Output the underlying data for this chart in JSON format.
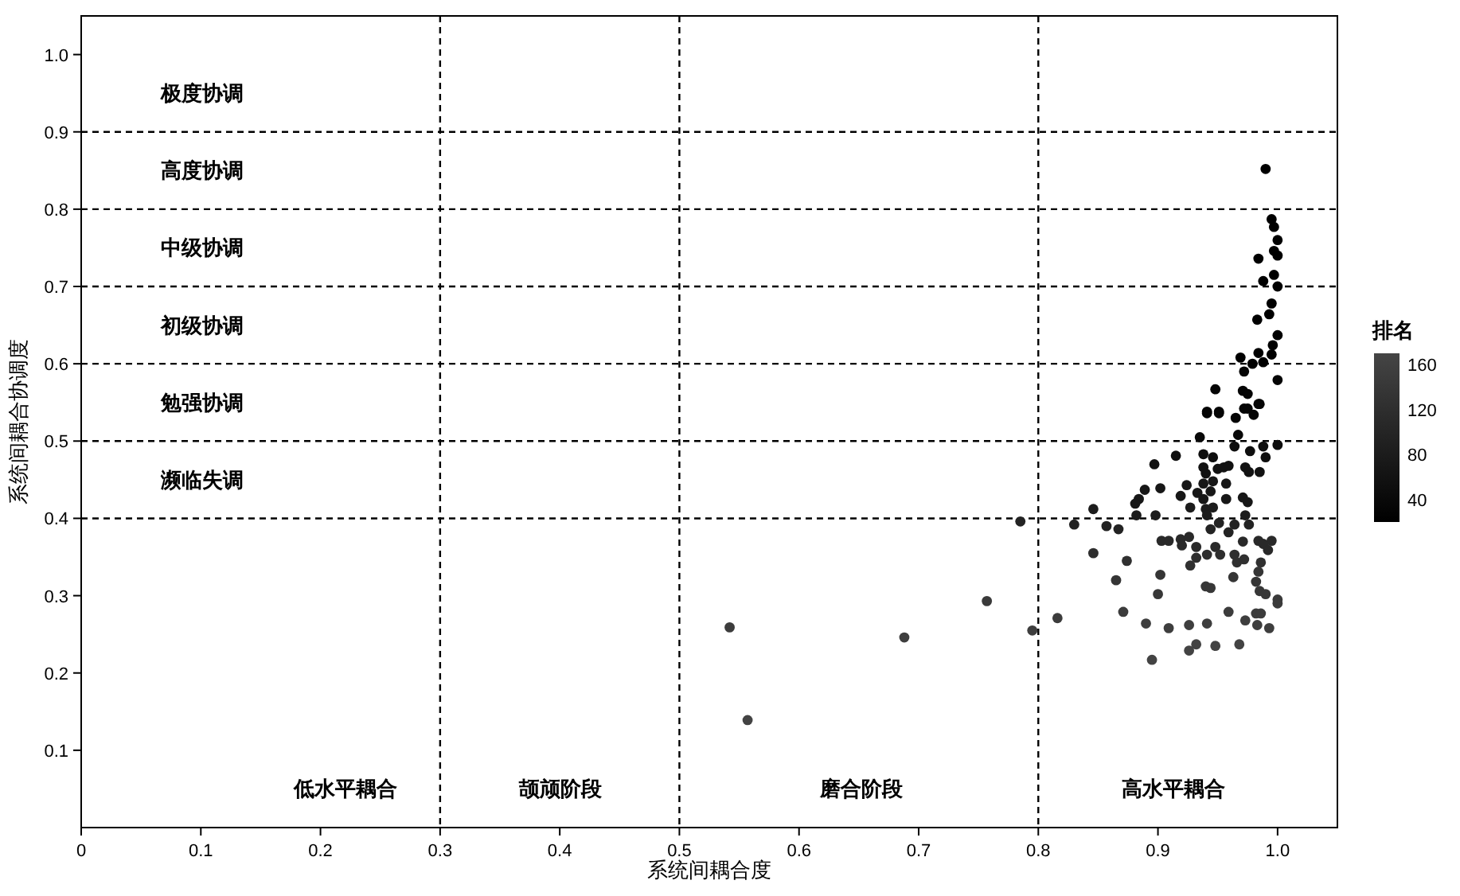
{
  "chart_data": {
    "type": "scatter",
    "xlabel": "系统间耦合度",
    "ylabel": "系统间耦合协调度",
    "clabel": "排名",
    "clim": [
      20,
      170
    ],
    "cticks": [
      40,
      80,
      120,
      160
    ],
    "xlim": [
      0,
      1.05
    ],
    "ylim": [
      0,
      1.05
    ],
    "xticks": [
      0,
      0.1,
      0.2,
      0.3,
      0.4,
      0.5,
      0.6,
      0.7,
      0.8,
      0.9,
      {
        "value": 1,
        "label": "1.0"
      }
    ],
    "yticks": [
      0.1,
      0.2,
      0.3,
      0.4,
      0.5,
      0.6,
      0.7,
      0.8,
      0.9,
      {
        "value": 1,
        "label": "1.0"
      }
    ],
    "grid": false,
    "marker": "circle",
    "ref_lines": [
      {
        "axis": "x",
        "value": 0.3,
        "line_style": "dashed",
        "color": "#000000"
      },
      {
        "axis": "x",
        "value": 0.5,
        "line_style": "dashed",
        "color": "#000000"
      },
      {
        "axis": "x",
        "value": 0.8,
        "line_style": "dashed",
        "color": "#000000"
      },
      {
        "axis": "y",
        "value": 0.4,
        "line_style": "dashed",
        "color": "#000000"
      },
      {
        "axis": "y",
        "value": 0.5,
        "line_style": "dashed",
        "color": "#000000"
      },
      {
        "axis": "y",
        "value": 0.6,
        "line_style": "dashed",
        "color": "#000000"
      },
      {
        "axis": "y",
        "value": 0.7,
        "line_style": "dashed",
        "color": "#000000"
      },
      {
        "axis": "y",
        "value": 0.8,
        "line_style": "dashed",
        "color": "#000000"
      },
      {
        "axis": "y",
        "value": 0.9,
        "line_style": "dashed",
        "color": "#000000"
      }
    ],
    "annotations": [
      "极度协调",
      "高度协调",
      "中级协调",
      "初级协调",
      "勉强协调",
      "濒临失调",
      "低水平耦合",
      "颉颃阶段",
      "磨合阶段",
      "高水平耦合"
    ],
    "x": [
      0.99,
      0.995,
      0.997,
      1.0,
      0.997,
      0.984,
      1.0,
      0.997,
      0.988,
      1.0,
      0.995,
      0.993,
      0.983,
      1.0,
      0.996,
      0.984,
      0.995,
      0.969,
      0.979,
      0.988,
      0.972,
      1.0,
      0.948,
      0.971,
      0.975,
      0.985,
      0.941,
      0.951,
      0.972,
      0.941,
      0.951,
      0.965,
      0.975,
      0.984,
      0.98,
      0.935,
      0.967,
      0.964,
      0.977,
      0.988,
      1.0,
      0.99,
      0.915,
      0.938,
      0.946,
      0.897,
      0.938,
      0.94,
      0.95,
      0.955,
      0.959,
      0.973,
      0.976,
      0.985,
      0.946,
      0.938,
      0.924,
      0.957,
      0.902,
      0.889,
      0.919,
      0.933,
      0.938,
      0.944,
      0.884,
      0.881,
      0.957,
      0.971,
      0.975,
      0.927,
      0.94,
      0.946,
      0.846,
      0.882,
      0.898,
      0.941,
      0.973,
      0.785,
      0.83,
      0.857,
      0.867,
      0.951,
      0.964,
      0.976,
      0.944,
      0.959,
      0.903,
      0.909,
      0.919,
      0.926,
      0.92,
      0.932,
      0.948,
      0.971,
      0.984,
      0.988,
      0.995,
      0.992,
      0.846,
      0.941,
      0.952,
      0.932,
      0.964,
      0.927,
      0.966,
      0.972,
      0.874,
      0.986,
      0.902,
      0.963,
      0.984,
      0.865,
      0.982,
      0.985,
      0.94,
      0.944,
      0.99,
      0.9,
      1.0,
      1.0,
      0.757,
      0.871,
      0.959,
      0.982,
      0.986,
      0.816,
      0.795,
      0.89,
      0.909,
      0.926,
      0.941,
      0.973,
      0.983,
      0.993,
      0.932,
      0.926,
      0.948,
      0.968,
      0.895,
      0.542,
      0.557,
      0.688
    ],
    "values": [
      0.852,
      0.787,
      0.777,
      0.76,
      0.746,
      0.736,
      0.74,
      0.715,
      0.707,
      0.7,
      0.678,
      0.664,
      0.657,
      0.637,
      0.624,
      0.614,
      0.612,
      0.608,
      0.6,
      0.602,
      0.59,
      0.579,
      0.567,
      0.565,
      0.561,
      0.548,
      0.538,
      0.538,
      0.542,
      0.536,
      0.536,
      0.53,
      0.542,
      0.548,
      0.534,
      0.505,
      0.508,
      0.493,
      0.487,
      0.493,
      0.495,
      0.479,
      0.481,
      0.483,
      0.479,
      0.47,
      0.466,
      0.458,
      0.464,
      0.466,
      0.468,
      0.466,
      0.46,
      0.46,
      0.448,
      0.445,
      0.443,
      0.445,
      0.439,
      0.437,
      0.429,
      0.433,
      0.425,
      0.435,
      0.425,
      0.419,
      0.425,
      0.427,
      0.421,
      0.414,
      0.412,
      0.414,
      0.412,
      0.404,
      0.404,
      0.404,
      0.404,
      0.396,
      0.392,
      0.39,
      0.386,
      0.394,
      0.392,
      0.392,
      0.386,
      0.382,
      0.371,
      0.371,
      0.373,
      0.376,
      0.365,
      0.363,
      0.363,
      0.37,
      0.371,
      0.367,
      0.371,
      0.359,
      0.355,
      0.353,
      0.353,
      0.349,
      0.353,
      0.339,
      0.343,
      0.347,
      0.345,
      0.343,
      0.327,
      0.324,
      0.331,
      0.32,
      0.318,
      0.306,
      0.312,
      0.31,
      0.302,
      0.302,
      0.295,
      0.29,
      0.293,
      0.279,
      0.279,
      0.277,
      0.277,
      0.271,
      0.255,
      0.264,
      0.258,
      0.262,
      0.264,
      0.268,
      0.262,
      0.258,
      0.237,
      0.229,
      0.235,
      0.237,
      0.217,
      0.259,
      0.139,
      0.246
    ],
    "cvalues": [
      20,
      20,
      20,
      20,
      20,
      20,
      20,
      20,
      20,
      20,
      20,
      20,
      20,
      20,
      20,
      20,
      20,
      20,
      20,
      20,
      30,
      30,
      30,
      30,
      30,
      30,
      30,
      30,
      30,
      30,
      30,
      30,
      30,
      30,
      30,
      40,
      40,
      50,
      50,
      50,
      50,
      50,
      50,
      50,
      50,
      60,
      60,
      60,
      60,
      60,
      60,
      60,
      60,
      60,
      70,
      70,
      70,
      70,
      70,
      70,
      70,
      70,
      70,
      70,
      70,
      70,
      70,
      70,
      70,
      80,
      80,
      80,
      80,
      80,
      80,
      80,
      80,
      95,
      95,
      95,
      95,
      95,
      95,
      95,
      95,
      95,
      110,
      110,
      110,
      110,
      110,
      110,
      110,
      110,
      110,
      110,
      110,
      110,
      120,
      120,
      120,
      120,
      120,
      125,
      125,
      125,
      125,
      125,
      135,
      135,
      135,
      135,
      135,
      140,
      140,
      140,
      140,
      140,
      145,
      145,
      145,
      150,
      150,
      150,
      150,
      150,
      155,
      155,
      155,
      155,
      155,
      155,
      155,
      155,
      165,
      165,
      165,
      165,
      165,
      150,
      165,
      155
    ]
  }
}
